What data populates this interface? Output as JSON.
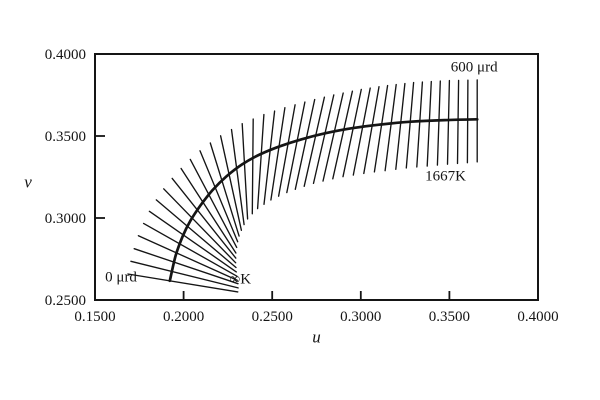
{
  "figure": {
    "background": "#ffffff",
    "ink": "#151515"
  },
  "chart_data": {
    "type": "line",
    "title": "",
    "xlabel": "u",
    "ylabel": "v",
    "xlim": [
      0.15,
      0.4
    ],
    "ylim": [
      0.25,
      0.4
    ],
    "grid": false,
    "legend": false,
    "x_ticks": [
      {
        "value": 0.15,
        "label": "0.1500",
        "mark": false
      },
      {
        "value": 0.2,
        "label": "0.2000",
        "mark": true
      },
      {
        "value": 0.25,
        "label": "0.2500",
        "mark": true
      },
      {
        "value": 0.3,
        "label": "0.3000",
        "mark": true
      },
      {
        "value": 0.35,
        "label": "0.3500",
        "mark": true
      },
      {
        "value": 0.4,
        "label": "0.4000",
        "mark": false
      }
    ],
    "y_ticks": [
      {
        "value": 0.25,
        "label": "0.2500",
        "mark": false
      },
      {
        "value": 0.3,
        "label": "0.3000",
        "mark": true
      },
      {
        "value": 0.35,
        "label": "0.3500",
        "mark": true
      },
      {
        "value": 0.4,
        "label": "0.4000",
        "mark": false
      }
    ],
    "series": [
      {
        "name": "planckian_locus",
        "points": [
          [
            0.1922,
            0.2617
          ],
          [
            0.1955,
            0.277
          ],
          [
            0.1994,
            0.2886
          ],
          [
            0.2039,
            0.2984
          ],
          [
            0.2095,
            0.3076
          ],
          [
            0.2162,
            0.3168
          ],
          [
            0.2241,
            0.3253
          ],
          [
            0.233,
            0.3327
          ],
          [
            0.2431,
            0.3388
          ],
          [
            0.2543,
            0.3437
          ],
          [
            0.2666,
            0.348
          ],
          [
            0.2801,
            0.3517
          ],
          [
            0.2946,
            0.3547
          ],
          [
            0.3103,
            0.3569
          ],
          [
            0.3282,
            0.3587
          ],
          [
            0.3472,
            0.3597
          ],
          [
            0.3657,
            0.3602
          ]
        ]
      }
    ],
    "isotherms": {
      "description": "isotemperature lines at equal reciprocal colour temperature (mired) intervals along the Planckian locus",
      "mired_min": 0,
      "mired_max": 600,
      "count": 41,
      "angles_deg": [
        170,
        165,
        160,
        154,
        148.5,
        143,
        137.5,
        132,
        126.5,
        121,
        116,
        111,
        106,
        101.5,
        97,
        93,
        89.5,
        86.5,
        84,
        82,
        80.5,
        79.5,
        78.7,
        78.2,
        78,
        78,
        78.3,
        79,
        79.8,
        80.8,
        82,
        83.2,
        84.4,
        85.5,
        86.5,
        87.4,
        88.2,
        88.8,
        89.3,
        89.7,
        90
      ],
      "outer_len": 0.024,
      "inner_len_start": 0.039,
      "inner_len_end": 0.026
    },
    "annotations": [
      {
        "id": "mired-end-label",
        "text": "600 μrd",
        "u": 0.364,
        "v": 0.3914
      },
      {
        "id": "temp-end-label",
        "text": "1667K",
        "u": 0.3478,
        "v": 0.3247
      },
      {
        "id": "mired-start-label",
        "text": "0 μrd",
        "u": 0.1647,
        "v": 0.2635
      },
      {
        "id": "temp-start-label",
        "text": "∞K",
        "u": 0.232,
        "v": 0.2623
      }
    ]
  }
}
